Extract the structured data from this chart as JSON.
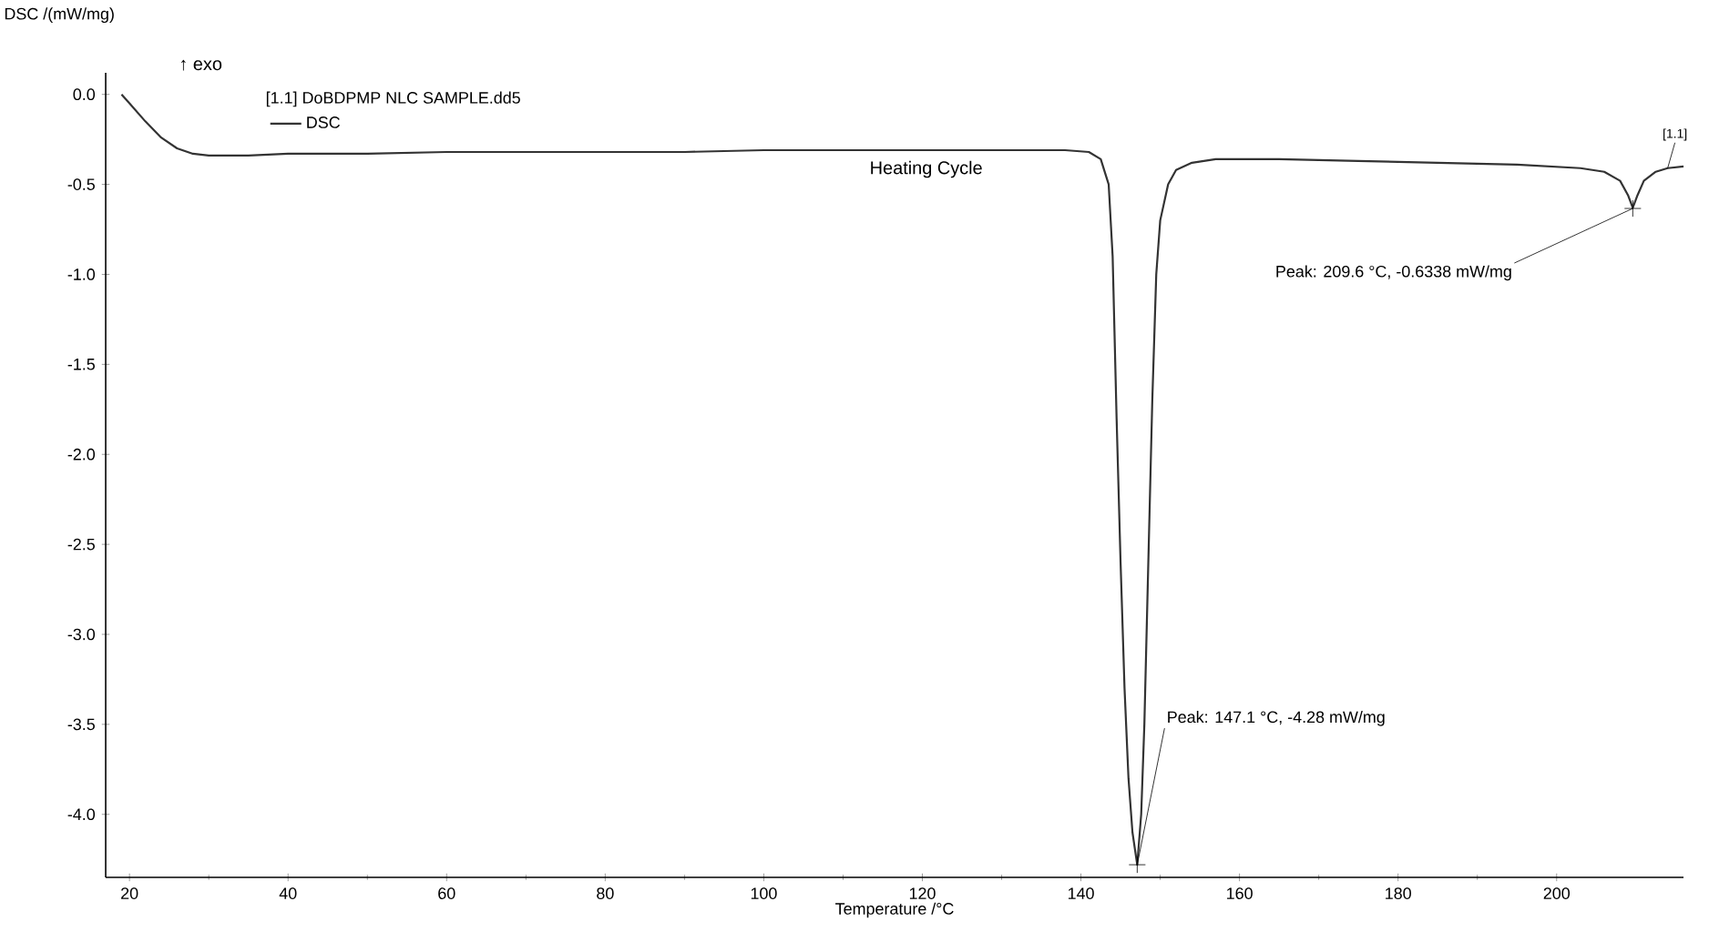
{
  "chart_data": {
    "type": "line",
    "title": null,
    "xlabel": "Temperature /°C",
    "ylabel": "DSC /(mW/mg)",
    "legend_title": "[1.1] DoBDPMP  NLC SAMPLE.dd5",
    "legend": "top left",
    "x": [
      19,
      20,
      22,
      24,
      26,
      28,
      30,
      35,
      40,
      50,
      60,
      70,
      80,
      90,
      100,
      110,
      120,
      130,
      138,
      141,
      142.5,
      143.5,
      144,
      144.5,
      145,
      145.5,
      146,
      146.5,
      147.1,
      147.6,
      148,
      148.5,
      149,
      149.5,
      150,
      151,
      152,
      154,
      157,
      165,
      175,
      185,
      195,
      203,
      206,
      208,
      209,
      209.6,
      210.2,
      211,
      212.5,
      214,
      216
    ],
    "series": [
      {
        "name": "DSC",
        "color": "#333333",
        "values": [
          0.0,
          -0.05,
          -0.15,
          -0.24,
          -0.3,
          -0.33,
          -0.34,
          -0.34,
          -0.33,
          -0.33,
          -0.32,
          -0.32,
          -0.32,
          -0.32,
          -0.31,
          -0.31,
          -0.31,
          -0.31,
          -0.31,
          -0.32,
          -0.36,
          -0.5,
          -0.9,
          -1.8,
          -2.6,
          -3.3,
          -3.8,
          -4.1,
          -4.28,
          -4.0,
          -3.5,
          -2.6,
          -1.7,
          -1.0,
          -0.7,
          -0.5,
          -0.42,
          -0.38,
          -0.36,
          -0.36,
          -0.37,
          -0.38,
          -0.39,
          -0.41,
          -0.43,
          -0.48,
          -0.56,
          -0.63,
          -0.56,
          -0.48,
          -0.43,
          -0.41,
          -0.4
        ]
      }
    ],
    "xlim": [
      17,
      216
    ],
    "ylim": [
      -4.35,
      0.12
    ],
    "xticks": [
      20,
      40,
      60,
      80,
      100,
      120,
      140,
      160,
      180,
      200
    ],
    "yticks": [
      {
        "value": 0,
        "label": "0.0"
      },
      {
        "value": -0.5,
        "label": "-0.5"
      },
      {
        "value": -1,
        "label": "-1.0"
      },
      {
        "value": -1.5,
        "label": "-1.5"
      },
      {
        "value": -2,
        "label": "-2.0"
      },
      {
        "value": -2.5,
        "label": "-2.5"
      },
      {
        "value": -3,
        "label": "-3.0"
      },
      {
        "value": -3.5,
        "label": "-3.5"
      },
      {
        "value": -4,
        "label": "-4.0"
      }
    ],
    "grid": false,
    "marker": "none",
    "line_style": "solid",
    "annotations": [
      "↑ exo",
      "Heating Cycle",
      {
        "text": "[1.1]",
        "x": 214,
        "y": -0.41
      },
      {
        "text": "Peak: 209.6 °C, -0.6338 mW/mg",
        "x": 209.6,
        "y": -0.6338
      },
      {
        "text": "Peak: 147.1 °C, -4.28 mW/mg",
        "x": 147.1,
        "y": -4.28
      }
    ]
  }
}
